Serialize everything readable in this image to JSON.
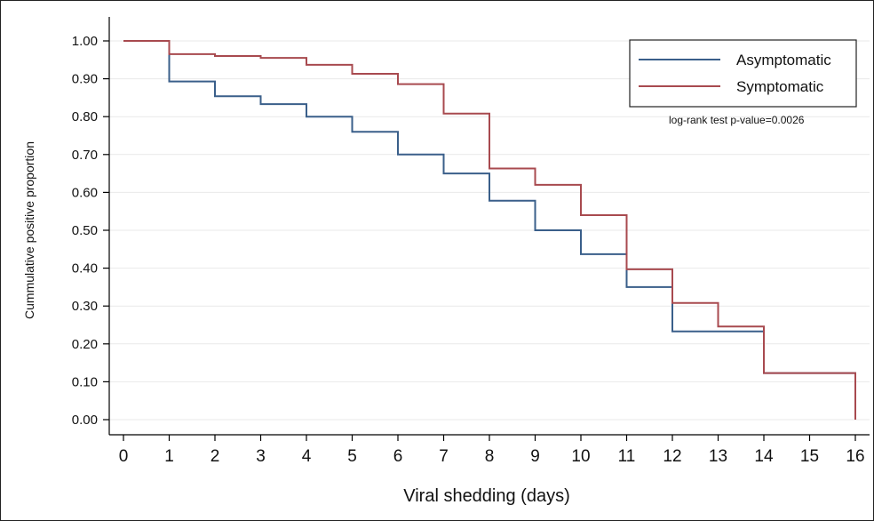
{
  "chart_data": {
    "type": "line",
    "title": "",
    "xlabel": "Viral shedding (days)",
    "ylabel": "Cummulative positive proportion",
    "xlim": [
      0,
      16
    ],
    "ylim": [
      0,
      1
    ],
    "xticks": [
      "0",
      "1",
      "2",
      "3",
      "4",
      "5",
      "6",
      "7",
      "8",
      "9",
      "10",
      "11",
      "12",
      "13",
      "14",
      "15",
      "16"
    ],
    "yticks": [
      "0.00",
      "0.10",
      "0.20",
      "0.30",
      "0.40",
      "0.50",
      "0.60",
      "0.70",
      "0.80",
      "0.90",
      "1.00"
    ],
    "grid": true,
    "legend_position": "top-right",
    "series": [
      {
        "name": "Asymptomatic",
        "color": "#3a5f8a",
        "step": true,
        "x": [
          0,
          1,
          2,
          3,
          4,
          5,
          6,
          7,
          8,
          9,
          10,
          11,
          12,
          14,
          16
        ],
        "y": [
          1.0,
          0.893,
          0.854,
          0.833,
          0.8,
          0.76,
          0.7,
          0.65,
          0.578,
          0.5,
          0.437,
          0.35,
          0.233,
          0.123,
          0.0
        ]
      },
      {
        "name": "Symptomatic",
        "color": "#a84a4f",
        "step": true,
        "x": [
          0,
          1,
          2,
          3,
          4,
          5,
          6,
          7,
          8,
          9,
          10,
          11,
          12,
          13,
          14,
          16
        ],
        "y": [
          1.0,
          0.965,
          0.96,
          0.955,
          0.937,
          0.913,
          0.886,
          0.808,
          0.663,
          0.62,
          0.54,
          0.397,
          0.308,
          0.246,
          0.123,
          0.0
        ]
      }
    ],
    "annotations": [
      "log-rank test p-value=0.0026"
    ]
  }
}
